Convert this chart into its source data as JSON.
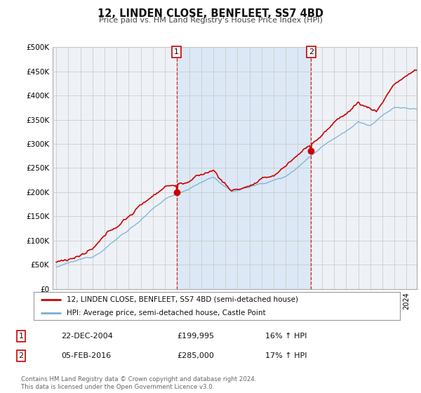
{
  "title": "12, LINDEN CLOSE, BENFLEET, SS7 4BD",
  "subtitle": "Price paid vs. HM Land Registry's House Price Index (HPI)",
  "y_ticks": [
    0,
    50000,
    100000,
    150000,
    200000,
    250000,
    300000,
    350000,
    400000,
    450000,
    500000
  ],
  "y_tick_labels": [
    "£0",
    "£50K",
    "£100K",
    "£150K",
    "£200K",
    "£250K",
    "£300K",
    "£350K",
    "£400K",
    "£450K",
    "£500K"
  ],
  "line1_color": "#cc0000",
  "line2_color": "#7aafd4",
  "shade_color": "#dce8f5",
  "transaction1_year": 2004.97,
  "transaction1_price": 199995,
  "transaction2_year": 2016.09,
  "transaction2_price": 285000,
  "vline_color": "#cc0000",
  "legend_label1": "12, LINDEN CLOSE, BENFLEET, SS7 4BD (semi-detached house)",
  "legend_label2": "HPI: Average price, semi-detached house, Castle Point",
  "table_row1": [
    "1",
    "22-DEC-2004",
    "£199,995",
    "16% ↑ HPI"
  ],
  "table_row2": [
    "2",
    "05-FEB-2016",
    "£285,000",
    "17% ↑ HPI"
  ],
  "footer": "Contains HM Land Registry data © Crown copyright and database right 2024.\nThis data is licensed under the Open Government Licence v3.0.",
  "bg_color": "#ffffff",
  "grid_color": "#cccccc",
  "plot_bg_color": "#eef2f7"
}
